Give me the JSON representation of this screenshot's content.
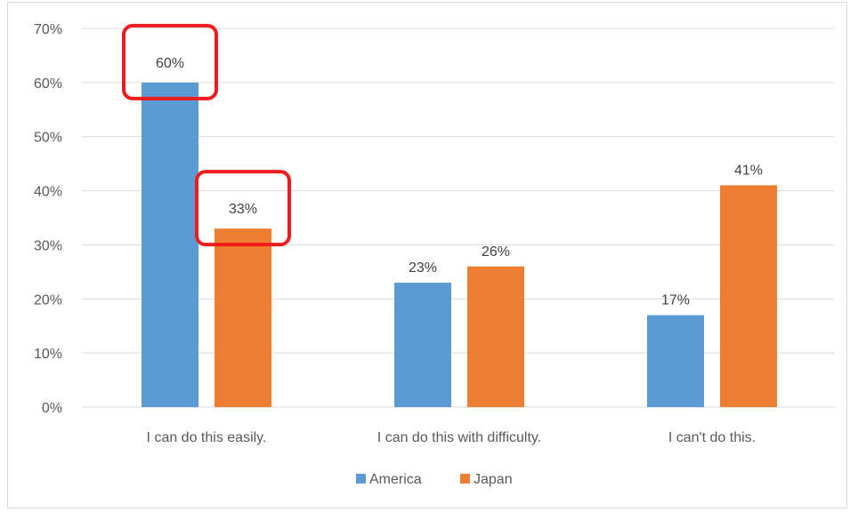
{
  "chart_data": {
    "type": "bar",
    "categories": [
      "I can do this easily.",
      "I can do this with difficulty.",
      "I can't do this."
    ],
    "series": [
      {
        "name": "America",
        "values": [
          60,
          23,
          17
        ],
        "labels": [
          "60%",
          "23%",
          "17%"
        ],
        "color": "#5b9bd5"
      },
      {
        "name": "Japan",
        "values": [
          33,
          26,
          41
        ],
        "labels": [
          "33%",
          "26%",
          "41%"
        ],
        "color": "#ed7d31"
      }
    ],
    "yticks": [
      "0%",
      "10%",
      "20%",
      "30%",
      "40%",
      "50%",
      "60%",
      "70%"
    ],
    "ylim": [
      0,
      70
    ],
    "grid": true,
    "legend": "bottom",
    "highlight_color": "#ee1c1c",
    "highlighted_labels": [
      {
        "series": 0,
        "category": 0
      },
      {
        "series": 1,
        "category": 0
      }
    ]
  }
}
